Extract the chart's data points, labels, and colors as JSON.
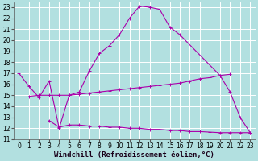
{
  "background_color": "#b2e0e0",
  "grid_color": "#ffffff",
  "line_color": "#aa00aa",
  "xlabel": "Windchill (Refroidissement éolien,°C)",
  "xlim": [
    -0.5,
    23.5
  ],
  "ylim": [
    11,
    23.4
  ],
  "xticks": [
    0,
    1,
    2,
    3,
    4,
    5,
    6,
    7,
    8,
    9,
    10,
    11,
    12,
    13,
    14,
    15,
    16,
    17,
    18,
    19,
    20,
    21,
    22,
    23
  ],
  "yticks": [
    11,
    12,
    13,
    14,
    15,
    16,
    17,
    18,
    19,
    20,
    21,
    22,
    23
  ],
  "curve1_x": [
    0,
    1,
    2,
    3,
    4,
    5,
    6,
    7,
    8,
    9,
    10,
    11,
    12,
    13,
    14,
    15,
    16,
    20,
    21,
    22,
    23
  ],
  "curve1_y": [
    17.0,
    15.8,
    14.8,
    16.3,
    12.0,
    15.0,
    15.3,
    17.2,
    18.8,
    19.5,
    20.5,
    22.0,
    23.1,
    23.0,
    22.8,
    21.2,
    20.5,
    16.8,
    15.3,
    13.0,
    11.6
  ],
  "curve2_x": [
    1,
    2,
    3,
    4,
    5,
    6,
    7,
    8,
    9,
    10,
    11,
    12,
    13,
    14,
    15,
    16,
    17,
    18,
    19,
    20,
    21
  ],
  "curve2_y": [
    14.9,
    15.0,
    15.0,
    15.0,
    15.0,
    15.1,
    15.2,
    15.3,
    15.4,
    15.5,
    15.6,
    15.7,
    15.8,
    15.9,
    16.0,
    16.1,
    16.3,
    16.5,
    16.6,
    16.8,
    16.9
  ],
  "curve3_x": [
    3,
    4,
    5,
    6,
    7,
    8,
    9,
    10,
    11,
    12,
    13,
    14,
    15,
    16,
    17,
    18,
    19,
    20,
    21,
    22,
    23
  ],
  "curve3_y": [
    12.7,
    12.1,
    12.3,
    12.3,
    12.2,
    12.2,
    12.1,
    12.1,
    12.0,
    12.0,
    11.9,
    11.9,
    11.8,
    11.8,
    11.7,
    11.7,
    11.65,
    11.6,
    11.6,
    11.6,
    11.6
  ],
  "tick_fontsize": 5.5,
  "label_fontsize": 6.5
}
